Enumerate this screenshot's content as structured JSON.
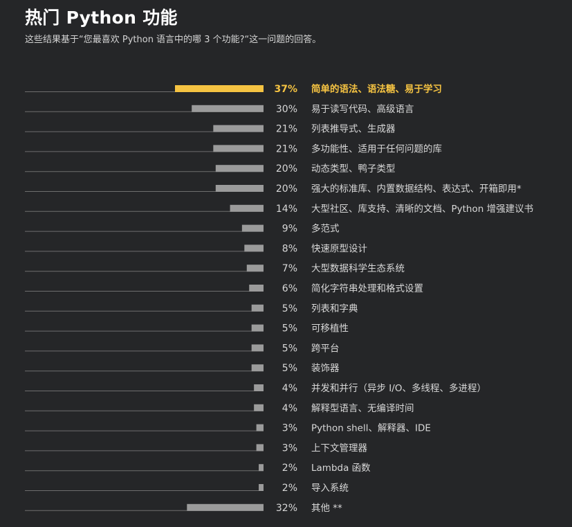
{
  "title": "热门 Python 功能",
  "subtitle": "这些结果基于“您最喜欢 Python 语言中的哪 3 个功能?“这一问题的回答。",
  "colors": {
    "background": "#252628",
    "highlight_bar": "#f5c342",
    "bar": "#9b9b9b",
    "baseline": "#6e6e6e",
    "text": "#d8d8d8"
  },
  "chart_data": {
    "type": "bar",
    "orientation": "horizontal",
    "value_format": "percent",
    "categories": [
      "简单的语法、语法糖、易于学习",
      "易于读写代码、高级语言",
      "列表推导式、生成器",
      "多功能性、适用于任何问题的库",
      "动态类型、鸭子类型",
      "强大的标准库、内置数据结构、表达式、开箱即用*",
      "大型社区、库支持、清晰的文档、Python 增强建议书",
      "多范式",
      "快速原型设计",
      "大型数据科学生态系统",
      "简化字符串处理和格式设置",
      "列表和字典",
      "可移植性",
      "跨平台",
      "装饰器",
      "并发和并行（异步 I/O、多线程、多进程）",
      "解释型语言、无编译时间",
      "Python shell、解释器、IDE",
      "上下文管理器",
      "Lambda 函数",
      "导入系统",
      "其他 **"
    ],
    "values": [
      37,
      30,
      21,
      21,
      20,
      20,
      14,
      9,
      8,
      7,
      6,
      5,
      5,
      5,
      5,
      4,
      4,
      3,
      3,
      2,
      2,
      32
    ],
    "labels": [
      "37%",
      "30%",
      "21%",
      "21%",
      "20%",
      "20%",
      "14%",
      "9%",
      "8%",
      "7%",
      "6%",
      "5%",
      "5%",
      "5%",
      "5%",
      "4%",
      "4%",
      "3%",
      "3%",
      "2%",
      "2%",
      "32%"
    ],
    "highlight_index": 0,
    "xlim": [
      0,
      37
    ]
  }
}
